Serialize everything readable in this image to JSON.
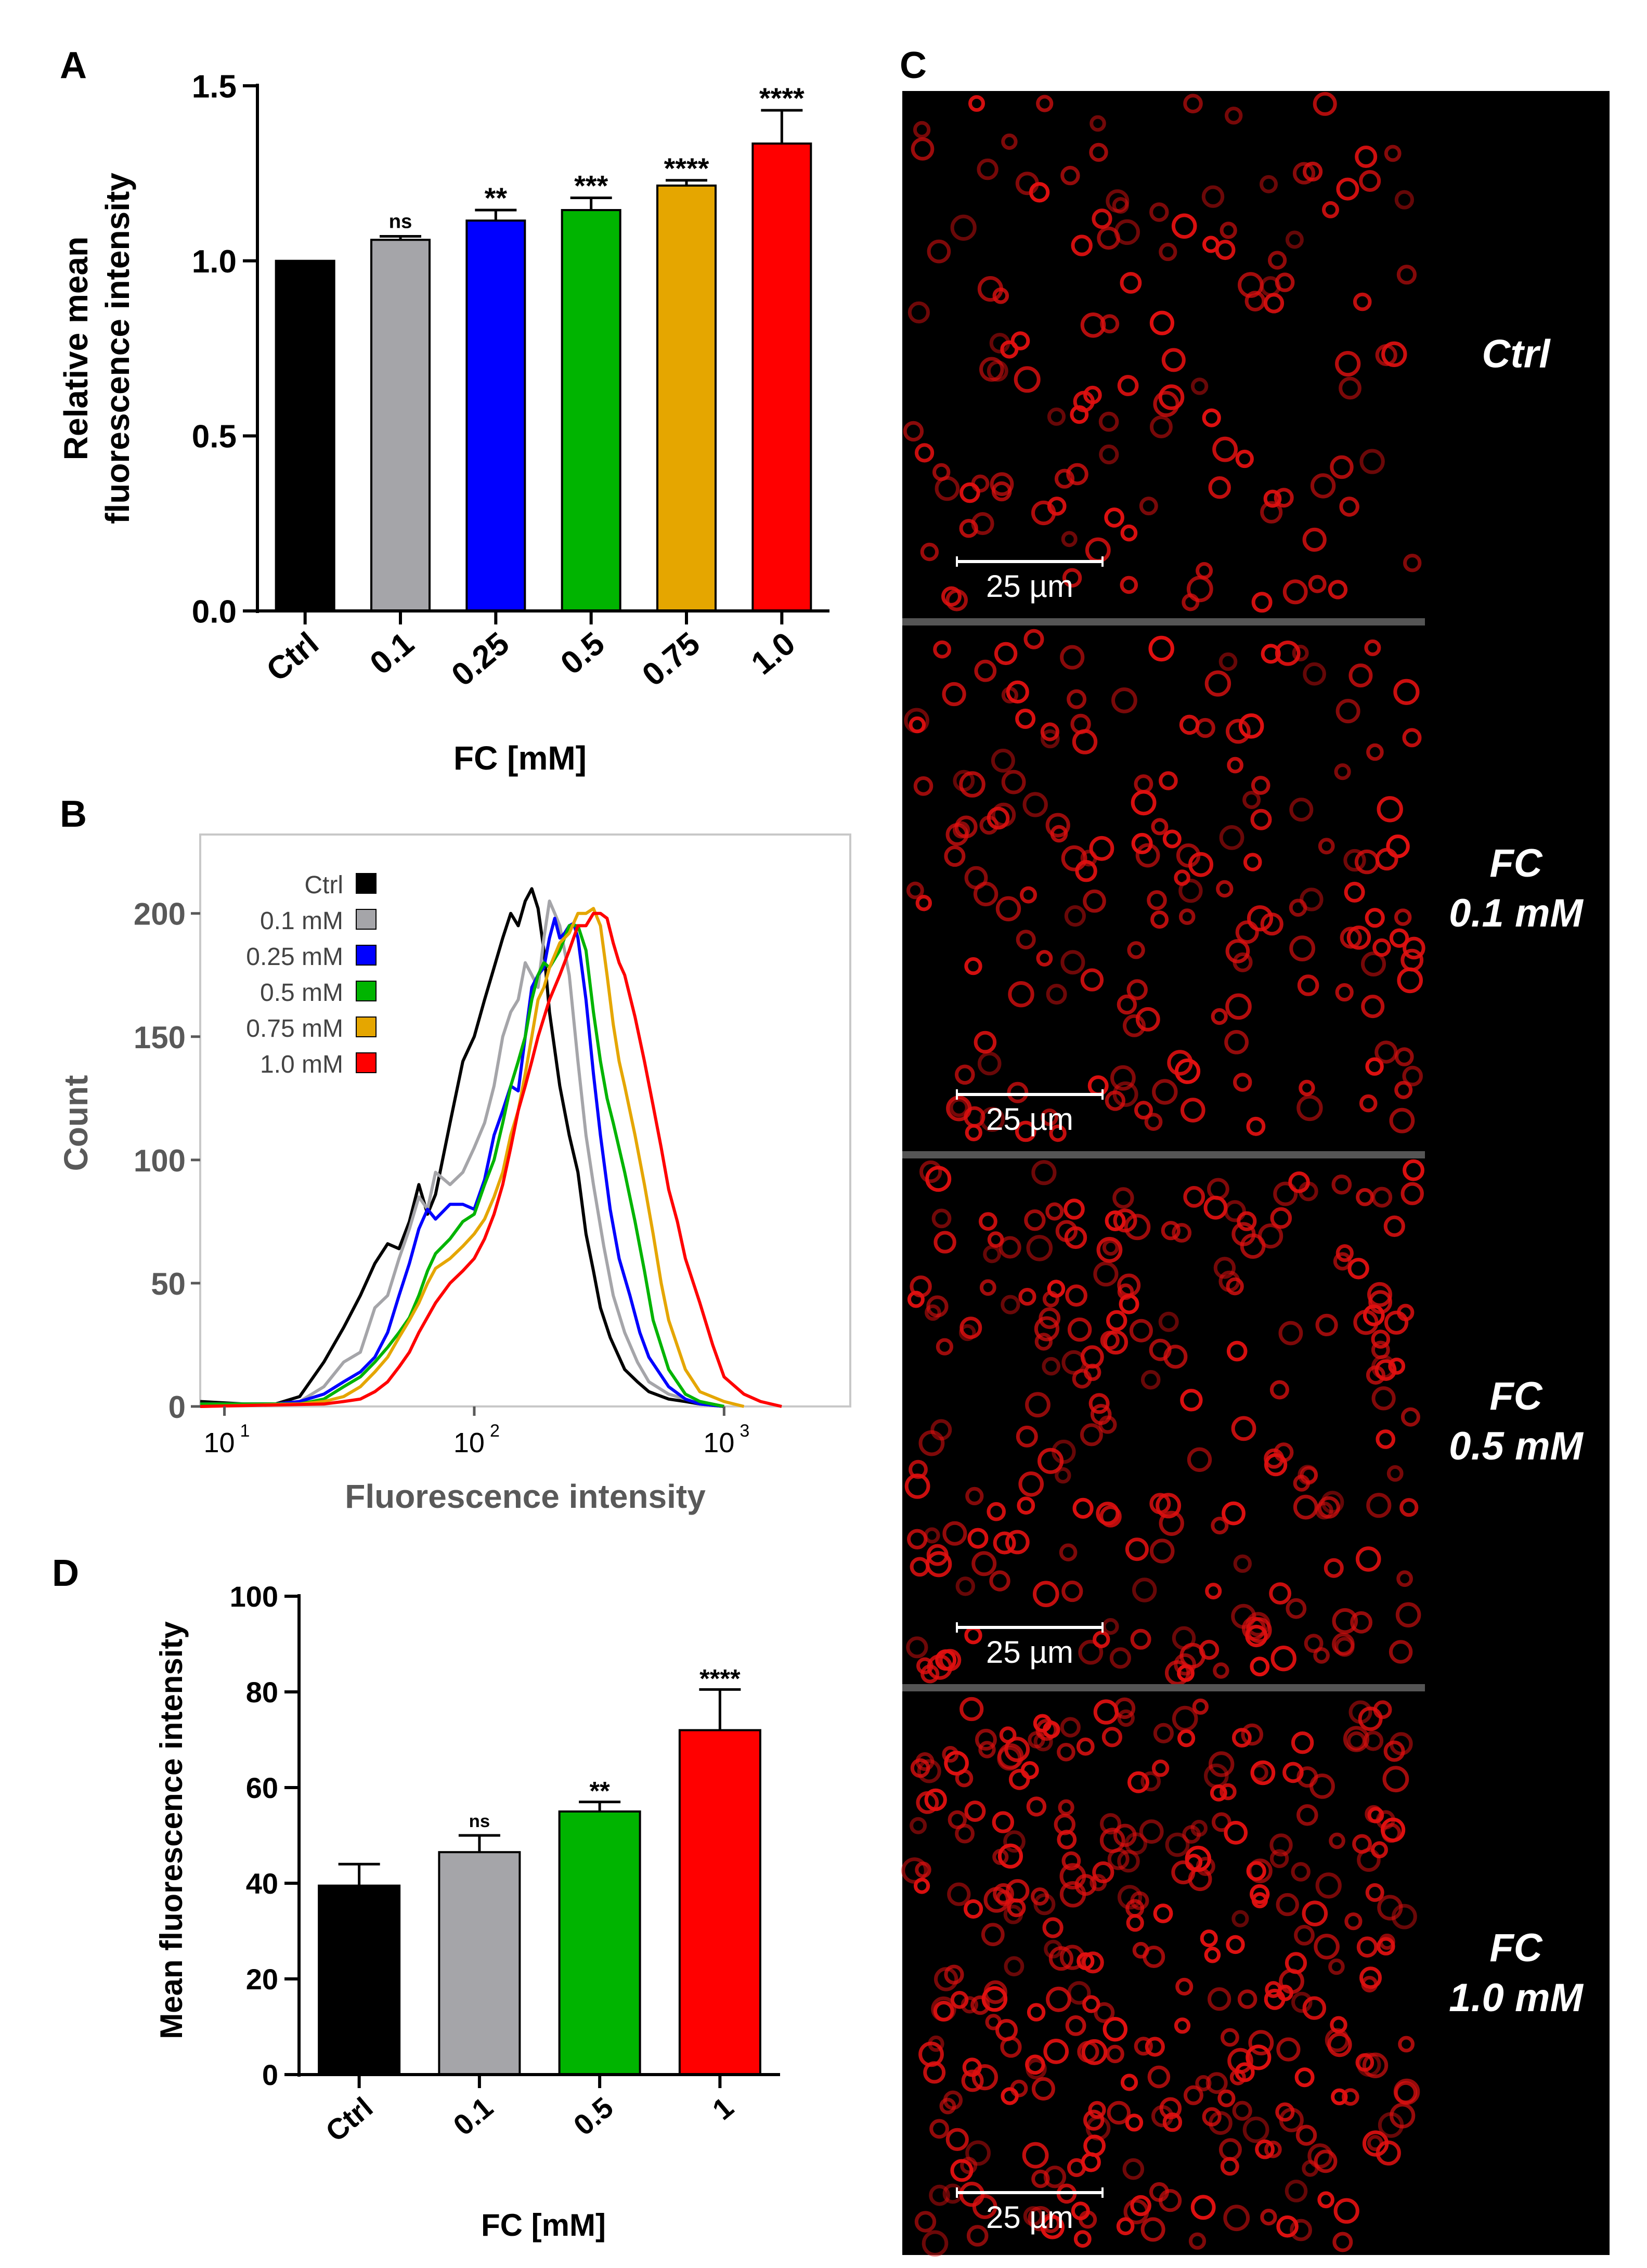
{
  "panel_labels": {
    "a": "A",
    "b": "B",
    "c": "C",
    "d": "D"
  },
  "colors": {
    "ctrl": "#000000",
    "c01": "#a5a5a9",
    "c025": "#0000ff",
    "c05": "#00b400",
    "c075": "#e5a600",
    "c10": "#ff0000",
    "micro_bg": "#000000",
    "cell": "#e01010",
    "separator": "#555555"
  },
  "chart_data": [
    {
      "id": "A",
      "type": "bar",
      "categories": [
        "Ctrl",
        "0.1",
        "0.25",
        "0.5",
        "0.75",
        "1.0"
      ],
      "values": [
        1.0,
        1.06,
        1.115,
        1.145,
        1.215,
        1.335
      ],
      "errors": [
        0.0,
        0.01,
        0.03,
        0.035,
        0.015,
        0.095
      ],
      "significance": [
        "",
        "ns",
        "**",
        "***",
        "****",
        "****"
      ],
      "colors": [
        "#000000",
        "#a5a5a9",
        "#0000ff",
        "#00b400",
        "#e5a600",
        "#ff0000"
      ],
      "title": "",
      "xlabel": "FC [mM]",
      "ylabel": [
        "Relative mean",
        "fluorescence intensity"
      ],
      "yticks": [
        "0.0",
        "0.5",
        "1.0",
        "1.5"
      ],
      "ytick_values": [
        0,
        0.5,
        1.0,
        1.5
      ],
      "ylim": [
        0,
        1.5
      ]
    },
    {
      "id": "B",
      "type": "line",
      "xscale": "log",
      "xlabel": "Fluorescence intensity",
      "ylabel": "Count",
      "xlim": [
        8,
        3200
      ],
      "ylim": [
        0,
        232
      ],
      "xticks": [
        {
          "value": 10,
          "base": "10",
          "exp": "1"
        },
        {
          "value": 100,
          "base": "10",
          "exp": "2"
        },
        {
          "value": 1000,
          "base": "10",
          "exp": "3"
        }
      ],
      "yticks": [
        "0",
        "50",
        "100",
        "150",
        "200"
      ],
      "ytick_values": [
        0,
        50,
        100,
        150,
        200
      ],
      "legend_position": "top-left",
      "series": [
        {
          "name": "Ctrl",
          "color": "#000000",
          "x": [
            8,
            12,
            16,
            20,
            25,
            30,
            35,
            40,
            45,
            50,
            55,
            60,
            65,
            70,
            80,
            90,
            100,
            110,
            120,
            130,
            140,
            150,
            160,
            170,
            180,
            190,
            200,
            220,
            240,
            260,
            280,
            300,
            320,
            350,
            400,
            450,
            500,
            600,
            700,
            800,
            1000
          ],
          "y": [
            2,
            1,
            1,
            4,
            18,
            32,
            45,
            58,
            66,
            64,
            75,
            90,
            78,
            86,
            115,
            140,
            150,
            165,
            178,
            190,
            200,
            195,
            205,
            210,
            202,
            185,
            160,
            130,
            110,
            95,
            70,
            55,
            40,
            28,
            15,
            10,
            6,
            3,
            2,
            1,
            0
          ]
        },
        {
          "name": "0.1 mM",
          "color": "#a5a5a9",
          "x": [
            8,
            12,
            16,
            20,
            25,
            30,
            35,
            40,
            45,
            50,
            55,
            60,
            65,
            70,
            80,
            90,
            100,
            110,
            120,
            130,
            140,
            150,
            160,
            170,
            180,
            190,
            200,
            210,
            220,
            240,
            260,
            280,
            300,
            330,
            360,
            400,
            450,
            500,
            600,
            700,
            800,
            1000
          ],
          "y": [
            1,
            1,
            1,
            2,
            8,
            18,
            22,
            40,
            45,
            60,
            72,
            85,
            80,
            95,
            90,
            95,
            105,
            115,
            130,
            150,
            160,
            165,
            180,
            175,
            170,
            190,
            205,
            200,
            195,
            175,
            140,
            110,
            90,
            65,
            45,
            30,
            18,
            10,
            5,
            3,
            1,
            0
          ]
        },
        {
          "name": "0.25 mM",
          "color": "#0000ff",
          "x": [
            8,
            16,
            20,
            25,
            30,
            35,
            40,
            45,
            50,
            55,
            60,
            65,
            70,
            80,
            90,
            100,
            110,
            120,
            130,
            140,
            150,
            160,
            170,
            180,
            190,
            200,
            210,
            220,
            230,
            240,
            250,
            260,
            280,
            300,
            320,
            350,
            380,
            420,
            460,
            500,
            600,
            700,
            800,
            1000
          ],
          "y": [
            1,
            1,
            2,
            5,
            10,
            14,
            20,
            30,
            45,
            58,
            72,
            80,
            76,
            82,
            82,
            80,
            92,
            110,
            120,
            130,
            128,
            150,
            170,
            175,
            178,
            190,
            198,
            190,
            192,
            195,
            196,
            190,
            165,
            135,
            110,
            80,
            60,
            45,
            30,
            20,
            8,
            3,
            1,
            0
          ]
        },
        {
          "name": "0.5 mM",
          "color": "#00b400",
          "x": [
            8,
            20,
            25,
            30,
            35,
            40,
            45,
            50,
            55,
            60,
            65,
            70,
            80,
            90,
            100,
            110,
            120,
            130,
            140,
            150,
            160,
            170,
            180,
            190,
            200,
            220,
            240,
            260,
            280,
            300,
            320,
            340,
            360,
            400,
            440,
            480,
            520,
            600,
            700,
            800,
            1000
          ],
          "y": [
            1,
            1,
            3,
            8,
            12,
            18,
            24,
            30,
            36,
            45,
            55,
            62,
            68,
            75,
            78,
            90,
            100,
            115,
            130,
            140,
            150,
            165,
            175,
            180,
            178,
            185,
            195,
            195,
            185,
            160,
            140,
            125,
            115,
            95,
            75,
            55,
            35,
            15,
            5,
            2,
            0
          ]
        },
        {
          "name": "0.75 mM",
          "color": "#e5a600",
          "x": [
            8,
            20,
            25,
            30,
            35,
            40,
            45,
            50,
            55,
            60,
            65,
            70,
            80,
            90,
            100,
            110,
            120,
            130,
            140,
            150,
            160,
            170,
            180,
            190,
            200,
            220,
            240,
            260,
            280,
            300,
            320,
            340,
            360,
            380,
            400,
            440,
            480,
            520,
            560,
            600,
            700,
            800,
            1000,
            1200
          ],
          "y": [
            0,
            1,
            2,
            4,
            8,
            14,
            20,
            28,
            35,
            42,
            50,
            56,
            60,
            65,
            70,
            76,
            85,
            95,
            110,
            120,
            135,
            150,
            165,
            170,
            178,
            188,
            192,
            200,
            200,
            202,
            195,
            175,
            155,
            140,
            130,
            110,
            90,
            70,
            50,
            35,
            15,
            6,
            2,
            0
          ]
        },
        {
          "name": "1.0 mM",
          "color": "#ff0000",
          "x": [
            8,
            25,
            30,
            35,
            40,
            45,
            50,
            55,
            60,
            70,
            80,
            90,
            100,
            110,
            120,
            130,
            140,
            150,
            160,
            170,
            180,
            200,
            220,
            240,
            260,
            280,
            300,
            320,
            340,
            360,
            380,
            400,
            440,
            480,
            520,
            560,
            600,
            650,
            700,
            800,
            900,
            1000,
            1200,
            1400,
            1700
          ],
          "y": [
            0,
            1,
            2,
            3,
            6,
            10,
            16,
            22,
            30,
            42,
            50,
            55,
            60,
            68,
            78,
            90,
            105,
            120,
            130,
            140,
            150,
            165,
            175,
            185,
            195,
            195,
            200,
            200,
            198,
            188,
            180,
            175,
            158,
            140,
            122,
            105,
            88,
            75,
            60,
            42,
            25,
            12,
            5,
            2,
            0
          ]
        }
      ]
    },
    {
      "id": "D",
      "type": "bar",
      "categories": [
        "Ctrl",
        "0.1",
        "0.5",
        "1"
      ],
      "values": [
        39.5,
        46.5,
        55.0,
        72.0
      ],
      "errors": [
        4.5,
        3.5,
        2.0,
        8.5
      ],
      "significance": [
        "",
        "ns",
        "**",
        "****"
      ],
      "colors": [
        "#000000",
        "#a5a5a9",
        "#00b400",
        "#ff0000"
      ],
      "title": "",
      "xlabel": "FC [mM]",
      "ylabel": "Mean fluorescence intensity",
      "yticks": [
        "0",
        "20",
        "40",
        "60",
        "80",
        "100"
      ],
      "ytick_values": [
        0,
        20,
        40,
        60,
        80,
        100
      ],
      "ylim": [
        0,
        100
      ]
    }
  ],
  "micrographs": [
    {
      "label_lines": [
        "Ctrl"
      ],
      "scale_text": "25 µm",
      "density": 120
    },
    {
      "label_lines": [
        "FC",
        "0.1 mM"
      ],
      "scale_text": "25 µm",
      "density": 160
    },
    {
      "label_lines": [
        "FC",
        "0.5 mM"
      ],
      "scale_text": "25 µm",
      "density": 200
    },
    {
      "label_lines": [
        "FC",
        "1.0 mM"
      ],
      "scale_text": "25 µm",
      "density": 300
    }
  ]
}
